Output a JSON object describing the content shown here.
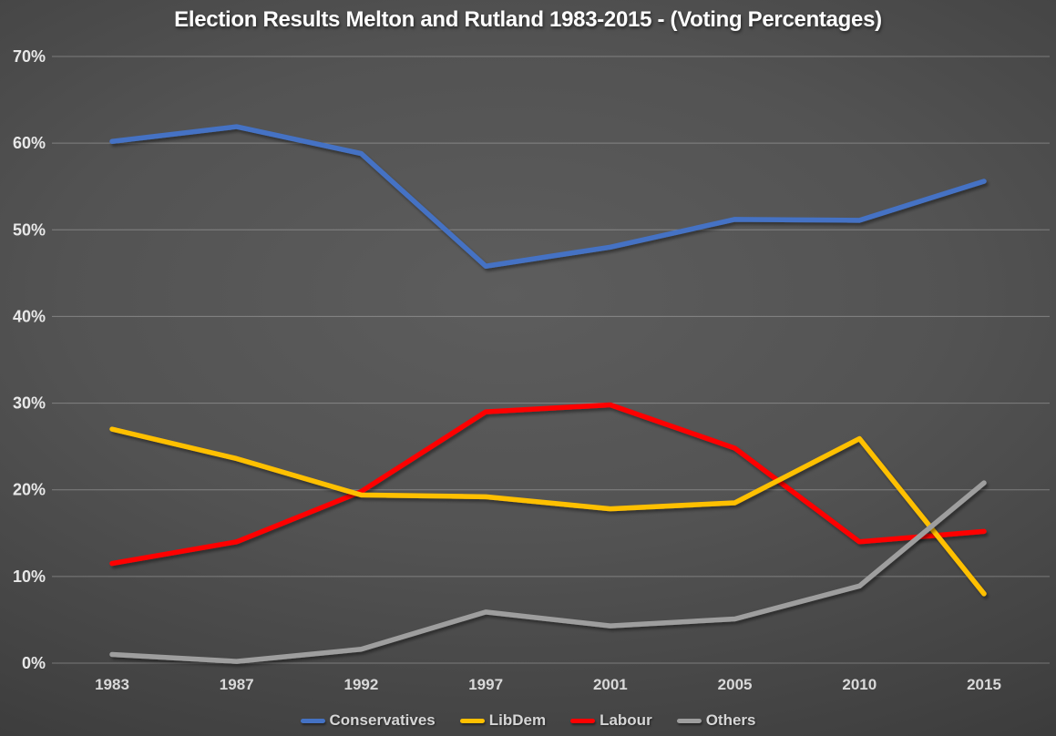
{
  "chart_data": {
    "type": "line",
    "title": "Election Results Melton and Rutland 1983-2015 - (Voting Percentages)",
    "categories": [
      "1983",
      "1987",
      "1992",
      "1997",
      "2001",
      "2005",
      "2010",
      "2015"
    ],
    "series": [
      {
        "name": "Conservatives",
        "color": "#4472C4",
        "values": [
          60.2,
          61.9,
          58.8,
          45.8,
          48.0,
          51.2,
          51.1,
          55.6
        ]
      },
      {
        "name": "LibDem",
        "color": "#FFC000",
        "values": [
          27.0,
          23.6,
          19.4,
          19.2,
          17.8,
          18.5,
          25.9,
          8.0
        ]
      },
      {
        "name": "Labour",
        "color": "#FF0000",
        "values": [
          11.5,
          14.0,
          19.8,
          29.0,
          29.8,
          24.8,
          14.0,
          15.2
        ]
      },
      {
        "name": "Others",
        "color": "#9E9E9E",
        "values": [
          1.0,
          0.2,
          1.6,
          5.9,
          4.3,
          5.1,
          8.9,
          20.8
        ]
      }
    ],
    "xlabel": "",
    "ylabel": "",
    "ylim": [
      0,
      70
    ],
    "ytick_step": 10,
    "ytick_labels": [
      "0%",
      "10%",
      "20%",
      "30%",
      "40%",
      "50%",
      "60%",
      "70%"
    ],
    "grid": true,
    "legend_position": "bottom"
  }
}
